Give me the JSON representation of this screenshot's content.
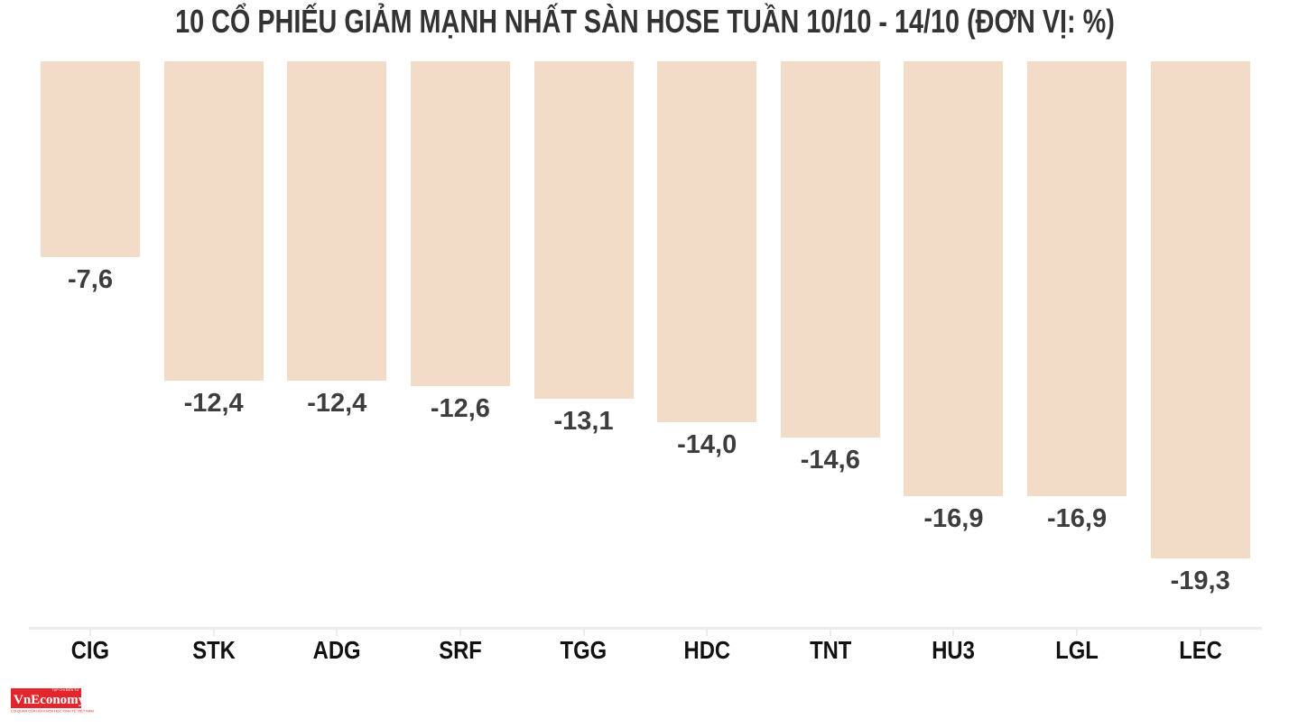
{
  "chart_data": {
    "type": "bar",
    "title": "10 CỔ PHIẾU GIẢM MẠNH NHẤT SÀN HOSE TUẦN 10/10 - 14/10 (ĐƠN VỊ: %)",
    "unit": "%",
    "categories": [
      "CIG",
      "STK",
      "ADG",
      "SRF",
      "TGG",
      "HDC",
      "TNT",
      "HU3",
      "LGL",
      "LEC"
    ],
    "values": [
      -7.6,
      -12.4,
      -12.4,
      -12.6,
      -13.1,
      -14.0,
      -14.6,
      -16.9,
      -16.9,
      -19.3
    ],
    "value_labels": [
      "-7,6",
      "-12,4",
      "-12,4",
      "-12,6",
      "-13,1",
      "-14,0",
      "-14,6",
      "-16,9",
      "-16,9",
      "-19,3"
    ],
    "orientation": "columns-descending-below-zero-baseline",
    "ylim": [
      -20,
      0
    ],
    "grid": false,
    "legend": "none",
    "bar_color": "#f3dcc7",
    "value_label_color": "#3d3d3d",
    "category_label_color": "#111111",
    "title_color": "#333333",
    "axis_line_color": "#ececec"
  },
  "branding": {
    "logo_text": "VnEconomy",
    "logo_tagline_top": "TẠP CHÍ ĐIỆN TỬ",
    "logo_tagline_bottom": "CƠ QUAN CỦA HỘI KHOA HỌC KINH TẾ VIỆT NAM",
    "logo_bg_color": "#e3262b",
    "logo_text_color": "#ffffff"
  }
}
